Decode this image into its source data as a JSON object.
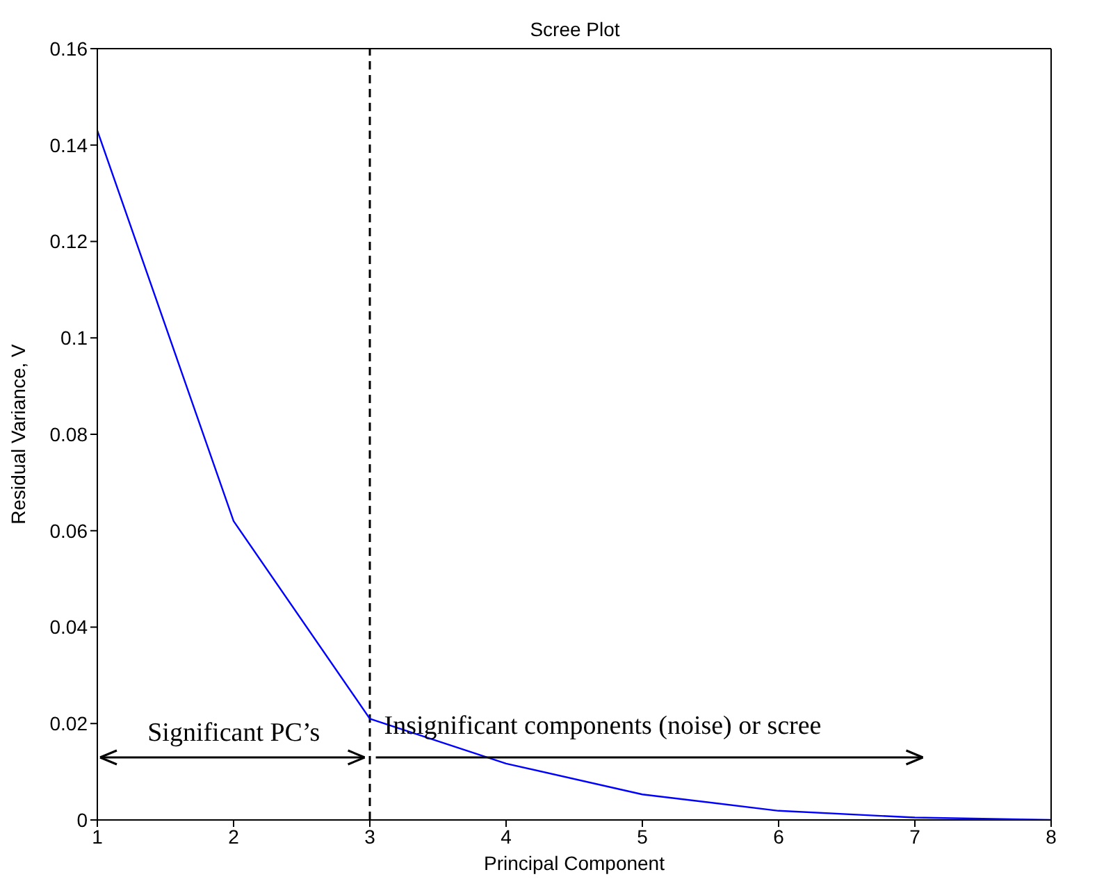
{
  "chart_data": {
    "type": "line",
    "title": "Scree Plot",
    "xlabel": "Principal Component",
    "ylabel": "Residual Variance, V",
    "x": [
      1,
      2,
      3,
      4,
      5,
      6,
      7,
      8
    ],
    "series": [
      {
        "color": "#0000ff",
        "values": [
          0.143,
          0.062,
          0.021,
          0.0117,
          0.0053,
          0.0019,
          0.0005,
          0
        ]
      }
    ],
    "xlim": [
      1,
      8
    ],
    "xticks": [
      1,
      2,
      3,
      4,
      5,
      6,
      7,
      8
    ],
    "ylim": [
      0,
      0.16
    ],
    "yticks": [
      0,
      0.02,
      0.04,
      0.06,
      0.08,
      0.1,
      0.12,
      0.14,
      0.16
    ],
    "ref_lines": [
      {
        "axis": "x",
        "value": 3,
        "color": "#000000",
        "line_style": "dashed"
      }
    ],
    "annotations": [
      "Significant PC’s",
      "Insignificant components (noise) or scree"
    ],
    "grid": false,
    "legend": false,
    "marker": "none",
    "line_style": "solid"
  }
}
